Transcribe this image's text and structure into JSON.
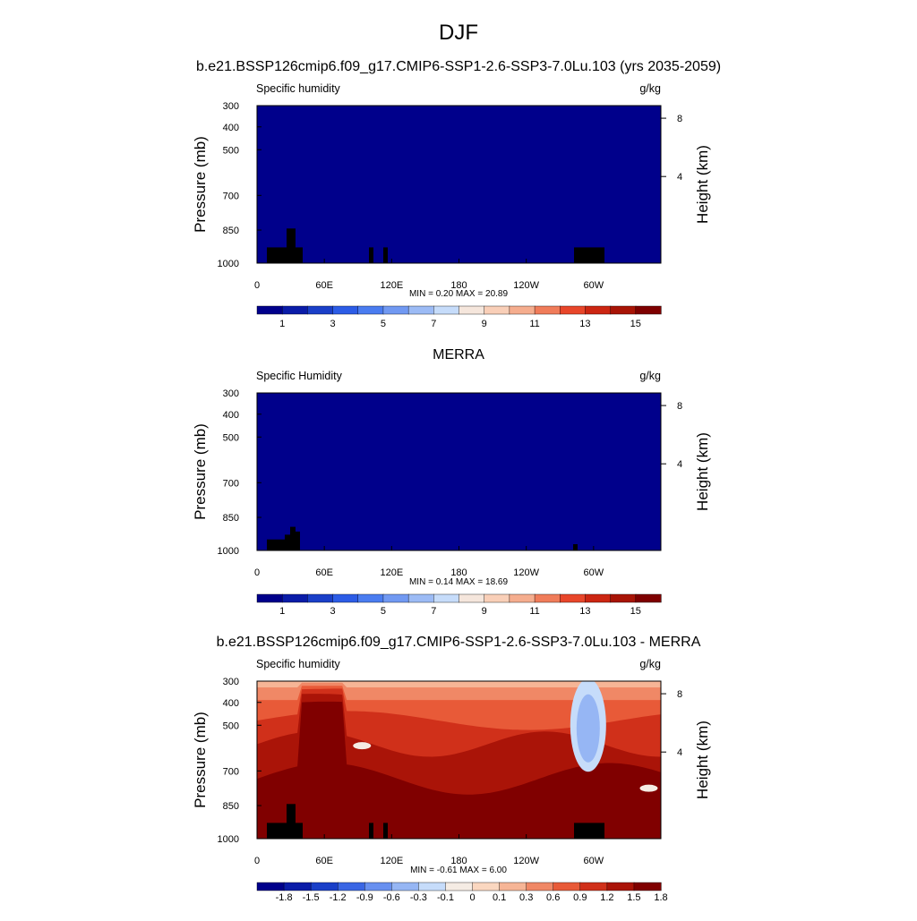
{
  "figure": {
    "title": "DJF"
  },
  "colors": {
    "abs_scale": [
      "#00008b",
      "#0a1ca8",
      "#1a3fc8",
      "#2c5ce6",
      "#4a7cf0",
      "#7199f2",
      "#9cbbf5",
      "#c6dcfa",
      "#f5e6dc",
      "#f9cfb8",
      "#f5ad8e",
      "#f07c5a",
      "#e8462a",
      "#cc2612",
      "#a81406",
      "#7e0000"
    ],
    "diff_scale": [
      "#00008b",
      "#0a1ca8",
      "#1a3fc8",
      "#3a66e4",
      "#6890f0",
      "#96b6f4",
      "#c6dcfa",
      "#f5ece4",
      "#fad7c0",
      "#f6b596",
      "#f08866",
      "#e85a38",
      "#d0301a",
      "#aa1408",
      "#800000"
    ],
    "ground": "#000000"
  },
  "chart_data": [
    {
      "type": "contour",
      "panel_title": "b.e21.BSSP126cmip6.f09_g17.CMIP6-SSP1-2.6-SSP3-7.0Lu.103 (yrs 2035-2059)",
      "left_label": "Specific humidity",
      "units": "g/kg",
      "ylabel": "Pressure (mb)",
      "ylabel_right": "Height (km)",
      "x_ticks": [
        "0",
        "60E",
        "120E",
        "180",
        "120W",
        "60W"
      ],
      "y_ticks": [
        "300",
        "400",
        "500",
        "700",
        "850",
        "1000"
      ],
      "y_right_ticks": [
        "8",
        "4"
      ],
      "min_text": "MIN =   0.20  MAX =  20.89",
      "min": 0.2,
      "max": 20.89,
      "colorbar_labels": [
        "1",
        "3",
        "5",
        "7",
        "9",
        "11",
        "13",
        "15"
      ]
    },
    {
      "type": "contour",
      "panel_title": "MERRA",
      "left_label": "Specific Humidity",
      "units": "g/kg",
      "ylabel": "Pressure (mb)",
      "ylabel_right": "Height (km)",
      "x_ticks": [
        "0",
        "60E",
        "120E",
        "180",
        "120W",
        "60W"
      ],
      "y_ticks": [
        "300",
        "400",
        "500",
        "700",
        "850",
        "1000"
      ],
      "y_right_ticks": [
        "8",
        "4"
      ],
      "min_text": "MIN =   0.14  MAX =  18.69",
      "min": 0.14,
      "max": 18.69,
      "colorbar_labels": [
        "1",
        "3",
        "5",
        "7",
        "9",
        "11",
        "13",
        "15"
      ]
    },
    {
      "type": "contour",
      "panel_title": "b.e21.BSSP126cmip6.f09_g17.CMIP6-SSP1-2.6-SSP3-7.0Lu.103 - MERRA",
      "left_label": "Specific humidity",
      "units": "g/kg",
      "ylabel": "Pressure (mb)",
      "ylabel_right": "Height (km)",
      "x_ticks": [
        "0",
        "60E",
        "120E",
        "180",
        "120W",
        "60W"
      ],
      "y_ticks": [
        "300",
        "400",
        "500",
        "700",
        "850",
        "1000"
      ],
      "y_right_ticks": [
        "8",
        "4"
      ],
      "min_text": "MIN =  -0.61  MAX =   6.00",
      "min": -0.61,
      "max": 6.0,
      "colorbar_labels": [
        "-1.8",
        "-1.5",
        "-1.2",
        "-0.9",
        "-0.6",
        "-0.3",
        "-0.1",
        "0",
        "0.1",
        "0.3",
        "0.6",
        "0.9",
        "1.2",
        "1.5",
        "1.8"
      ]
    }
  ]
}
